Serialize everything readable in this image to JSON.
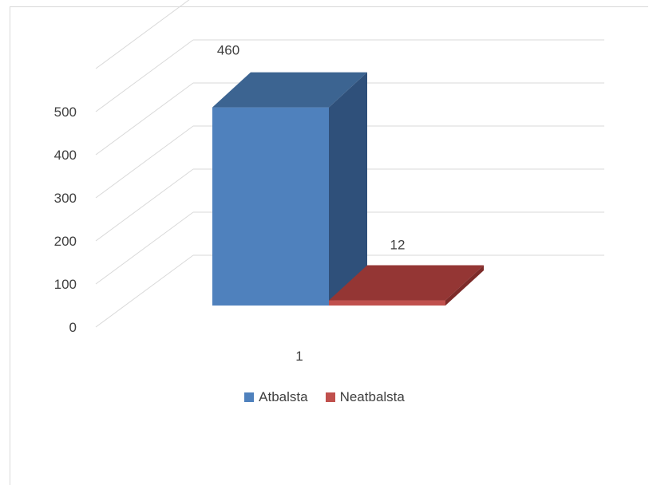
{
  "chart_data": {
    "type": "bar",
    "style": "3d-clustered-column",
    "categories": [
      "1"
    ],
    "series": [
      {
        "name": "Atbalsta",
        "values": [
          460
        ],
        "color": "#4f81bd",
        "side_color": "#2f507a",
        "top_color": "#3c6491"
      },
      {
        "name": "Neatbalsta",
        "values": [
          12
        ],
        "color": "#c0504d",
        "side_color": "#7d2b29",
        "top_color": "#943634"
      }
    ],
    "ylim": [
      0,
      500
    ],
    "yticks": [
      "0",
      "100",
      "200",
      "300",
      "400",
      "500"
    ],
    "data_labels": [
      "460",
      "12"
    ],
    "legend_position": "bottom",
    "grid": true
  }
}
